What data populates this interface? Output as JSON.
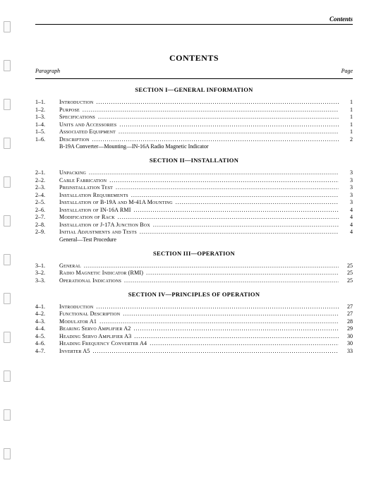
{
  "header": {
    "right": "Contents"
  },
  "title": "CONTENTS",
  "col_left": "Paragraph",
  "col_right": "Page",
  "sections": [
    {
      "title": "SECTION I—GENERAL INFORMATION",
      "rows": [
        {
          "para": "1–1.",
          "title": "Introduction",
          "page": "1"
        },
        {
          "para": "1–2.",
          "title": "Purpose",
          "page": "1"
        },
        {
          "para": "1–3.",
          "title": "Specifications",
          "page": "1"
        },
        {
          "para": "1–4.",
          "title": "Units and Accessories",
          "page": "1"
        },
        {
          "para": "1–5.",
          "title": "Associated Equipment",
          "page": "1"
        },
        {
          "para": "1–6.",
          "title": "Description",
          "page": "2"
        }
      ],
      "subnote": "B-19A Converter—Mounting—IN-16A Radio Magnetic Indicator"
    },
    {
      "title": "SECTION II—INSTALLATION",
      "rows": [
        {
          "para": "2–1.",
          "title": "Unpacking",
          "page": "3"
        },
        {
          "para": "2–2.",
          "title": "Cable Fabrication",
          "page": "3"
        },
        {
          "para": "2–3.",
          "title": "Preinstallation Test",
          "page": "3"
        },
        {
          "para": "2–4.",
          "title": "Installation Requirements",
          "page": "3"
        },
        {
          "para": "2–5.",
          "title": "Installation of B-19A and M-41A Mounting",
          "page": "3"
        },
        {
          "para": "2–6.",
          "title": "Installation of IN-16A RMI",
          "page": "4"
        },
        {
          "para": "2–7.",
          "title": "Modification of Rack",
          "page": "4"
        },
        {
          "para": "2–8.",
          "title": "Installation of J-17A Junction Box",
          "page": "4"
        },
        {
          "para": "2–9.",
          "title": "Initial Adjustments and Tests",
          "page": "4"
        }
      ],
      "subnote": "General—Test Procedure"
    },
    {
      "title": "SECTION III—OPERATION",
      "rows": [
        {
          "para": "3–1.",
          "title": "General",
          "page": "25"
        },
        {
          "para": "3–2.",
          "title": "Radio Magnetic Indicator (RMI)",
          "page": "25"
        },
        {
          "para": "3–3.",
          "title": "Operational Indications",
          "page": "25"
        }
      ]
    },
    {
      "title": "SECTION IV—PRINCIPLES OF OPERATION",
      "rows": [
        {
          "para": "4–1.",
          "title": "Introduction",
          "page": "27"
        },
        {
          "para": "4–2.",
          "title": "Functional Description",
          "page": "27"
        },
        {
          "para": "4–3.",
          "title": "Modulator A1",
          "page": "28"
        },
        {
          "para": "4–4.",
          "title": "Bearing Servo Amplifier A2",
          "page": "29"
        },
        {
          "para": "4–5.",
          "title": "Heading Servo Amplifier A3",
          "page": "30"
        },
        {
          "para": "4–6.",
          "title": "Heading Frequency Converter A4",
          "page": "30"
        },
        {
          "para": "4–7.",
          "title": "Inverter A5",
          "page": "33"
        }
      ]
    }
  ],
  "binding_holes": [
    30,
    85,
    140,
    195,
    250,
    305,
    360,
    415,
    470,
    525,
    580,
    635
  ]
}
